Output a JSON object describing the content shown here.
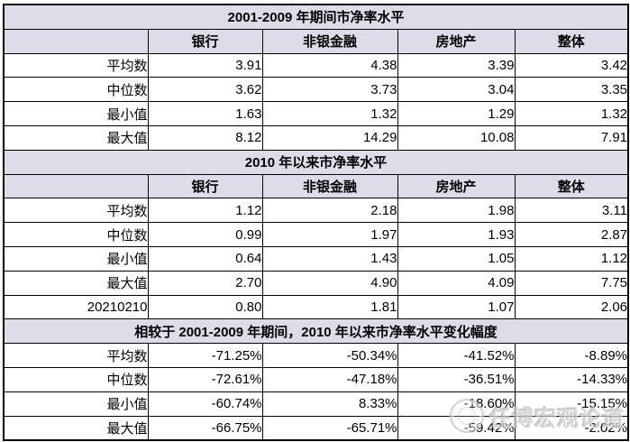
{
  "table": {
    "columns": [
      "",
      "银行",
      "非银金融",
      "房地产",
      "整体"
    ],
    "sections": [
      {
        "title": "2001-2009 年期间市净率水平",
        "show_column_header": true,
        "rows": [
          {
            "label": "平均数",
            "values": [
              "3.91",
              "4.38",
              "3.39",
              "3.42"
            ]
          },
          {
            "label": "中位数",
            "values": [
              "3.62",
              "3.73",
              "3.04",
              "3.35"
            ]
          },
          {
            "label": "最小值",
            "values": [
              "1.63",
              "1.32",
              "1.29",
              "1.32"
            ]
          },
          {
            "label": "最大值",
            "values": [
              "8.12",
              "14.29",
              "10.08",
              "7.91"
            ]
          }
        ]
      },
      {
        "title": "2010 年以来市净率水平",
        "show_column_header": true,
        "rows": [
          {
            "label": "平均数",
            "values": [
              "1.12",
              "2.18",
              "1.98",
              "3.11"
            ]
          },
          {
            "label": "中位数",
            "values": [
              "0.99",
              "1.97",
              "1.93",
              "2.87"
            ]
          },
          {
            "label": "最小值",
            "values": [
              "0.64",
              "1.43",
              "1.05",
              "1.12"
            ]
          },
          {
            "label": "最大值",
            "values": [
              "2.70",
              "4.90",
              "4.09",
              "7.75"
            ]
          },
          {
            "label": "20210210",
            "values": [
              "0.80",
              "1.81",
              "1.07",
              "2.06"
            ]
          }
        ]
      },
      {
        "title": "相较于 2001-2009 年期间，2010 年以来市净率水平变化幅度",
        "show_column_header": false,
        "rows": [
          {
            "label": "平均数",
            "values": [
              "-71.25%",
              "-50.34%",
              "-41.52%",
              "-8.89%"
            ]
          },
          {
            "label": "中位数",
            "values": [
              "-72.61%",
              "-47.18%",
              "-36.51%",
              "-14.33%"
            ]
          },
          {
            "label": "最小值",
            "values": [
              "-60.74%",
              "8.33%",
              "-18.60%",
              "-15.15%"
            ]
          },
          {
            "label": "最大值",
            "values": [
              "-66.75%",
              "-65.71%",
              "-59.42%",
              "-2.02%"
            ]
          }
        ]
      }
    ]
  },
  "watermark": {
    "text": "任博宏观论道",
    "icon": "logo-seal-icon"
  },
  "colors": {
    "header_bg": "#e0dbe8",
    "border": "#000000",
    "watermark": "#c9c9c9"
  }
}
